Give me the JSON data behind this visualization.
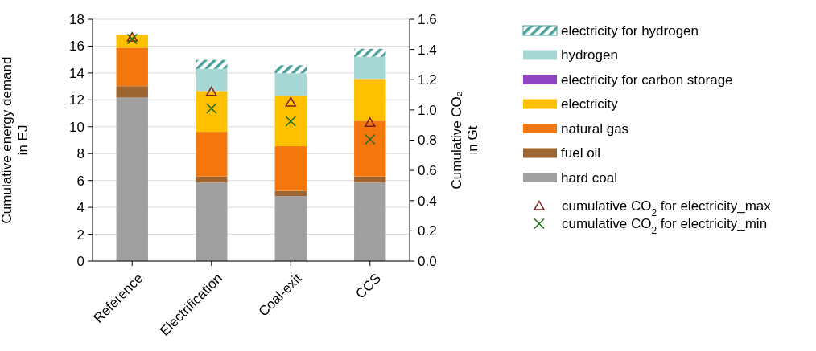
{
  "chart_data": {
    "type": "bar",
    "stacked": true,
    "categories": [
      "Reference",
      "Electrification",
      "Coal-exit",
      "CCS"
    ],
    "ylabel": "Cumulative energy demand in EJ",
    "y2label": "Cumulative CO₂ in Gt",
    "ylim": [
      0,
      18
    ],
    "yticks": [
      0,
      2,
      4,
      6,
      8,
      10,
      12,
      14,
      16,
      18
    ],
    "y2lim": [
      0,
      1.6
    ],
    "y2ticks": [
      {
        "value": 0,
        "label": "0.0"
      },
      {
        "value": 0.2,
        "label": "0.2"
      },
      {
        "value": 0.4,
        "label": "0.4"
      },
      {
        "value": 0.6,
        "label": "0.6"
      },
      {
        "value": 0.8,
        "label": "0.8"
      },
      {
        "value": 1,
        "label": "1.0"
      },
      {
        "value": 1.2,
        "label": "1.2"
      },
      {
        "value": 1.4,
        "label": "1.4"
      },
      {
        "value": 1.6,
        "label": "1.6"
      }
    ],
    "grid": "y",
    "legend": "right",
    "series": [
      {
        "name": "hard coal",
        "color": "#a0a0a0",
        "values": [
          12.17,
          5.85,
          4.83,
          5.85
        ]
      },
      {
        "name": "fuel oil",
        "color": "#9c6531",
        "values": [
          0.85,
          0.45,
          0.4,
          0.45
        ]
      },
      {
        "name": "natural gas",
        "color": "#f4770e",
        "values": [
          2.86,
          3.32,
          3.32,
          4.14
        ]
      },
      {
        "name": "electricity",
        "color": "#ffc000",
        "values": [
          0.96,
          3.04,
          3.74,
          3.12
        ]
      },
      {
        "name": "electricity for carbon storage",
        "color": "#8e44c4",
        "values": [
          0,
          0,
          0,
          0
        ]
      },
      {
        "name": "hydrogen",
        "color": "#a8d8d6",
        "values": [
          0,
          1.65,
          1.69,
          1.65
        ]
      },
      {
        "name": "electricity for hydrogen",
        "color": "#4a9f9a",
        "values": [
          0,
          0.66,
          0.59,
          0.59
        ]
      },
      {
        "name": "cumulative CO$_{2}$ for electricity_max",
        "type": "scatter",
        "axis": "y2",
        "marker": "triangle",
        "color": "#7b2020",
        "x": [
          "Reference",
          "Electrification",
          "Coal-exit",
          "CCS"
        ],
        "values": [
          1.48,
          1.12,
          1.05,
          0.915
        ]
      },
      {
        "name": "cumulative CO$_{2}$ for electricity_min",
        "type": "scatter",
        "axis": "y2",
        "marker": "cross",
        "color": "#1a6b1a",
        "x": [
          "Reference",
          "Electrification",
          "Coal-exit",
          "CCS"
        ],
        "values": [
          1.47,
          1.01,
          0.925,
          0.805
        ]
      }
    ]
  }
}
